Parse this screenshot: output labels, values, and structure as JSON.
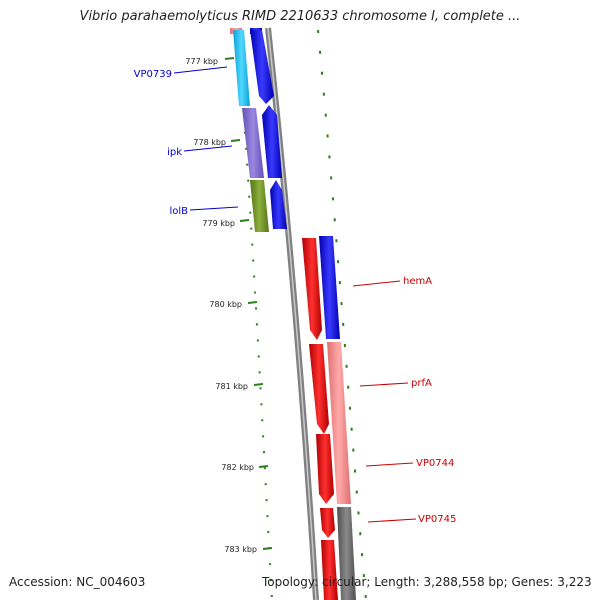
{
  "map": {
    "title": "Vibrio parahaemolyticus RIMD 2210633 chromosome I, complete ...",
    "accession": "Accession: NC_004603",
    "topology": "Topology: circular; Length: 3,288,558 bp; Genes: 3,223"
  },
  "ticks": [
    "777 kbp",
    "778 kbp",
    "779 kbp",
    "780 kbp",
    "781 kbp",
    "782 kbp",
    "783 kbp"
  ],
  "genes": [
    {
      "label": "VP0739",
      "strand": "left",
      "color": "#0000cc"
    },
    {
      "label": "ipk",
      "strand": "left",
      "color": "#0000cc"
    },
    {
      "label": "lolB",
      "strand": "left",
      "color": "#0000cc"
    },
    {
      "label": "hemA",
      "strand": "right",
      "color": "#cc0000"
    },
    {
      "label": "prfA",
      "strand": "right",
      "color": "#cc0000"
    },
    {
      "label": "VP0744",
      "strand": "right",
      "color": "#cc0000"
    },
    {
      "label": "VP0745",
      "strand": "right",
      "color": "#cc0000"
    }
  ],
  "colors": {
    "backbone": "#808080",
    "tick_dash": "#2e7d1f",
    "forward_cds": "#0000ee",
    "reverse_cds": "#ee0000",
    "cog_cyan": "#19c1f0",
    "cog_purple": "#7e69cc",
    "cog_olive": "#6e8e22",
    "cog_blue": "#1111ee",
    "cog_pink": "#ee8888",
    "cog_gray": "#666666"
  }
}
